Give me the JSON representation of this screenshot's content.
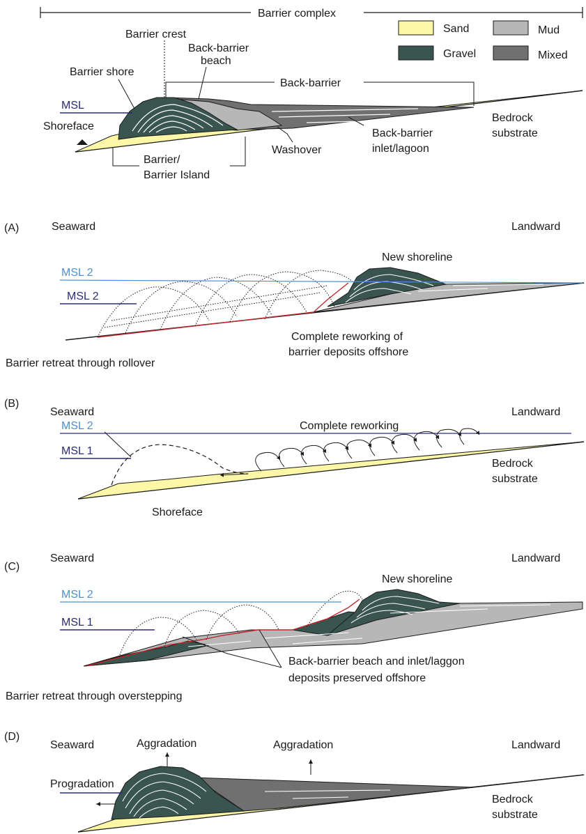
{
  "colors": {
    "sand": "#fbf7a6",
    "gravel": "#3a5550",
    "mud": "#b7b7b7",
    "mixed": "#707070",
    "msl_light": "#4a90d9",
    "msl_dark": "#2a2a7a",
    "reworking_surface": "#c0282d"
  },
  "top": {
    "complex_label": "Barrier complex",
    "legend": {
      "sand": "Sand",
      "mud": "Mud",
      "gravel": "Gravel",
      "mixed": "Mixed"
    },
    "labels": {
      "barrier_crest": "Barrier crest",
      "back_barrier_beach_1": "Back-barrier",
      "back_barrier_beach_2": "beach",
      "barrier_shore": "Barrier shore",
      "back_barrier": "Back-barrier",
      "msl": "MSL",
      "shoreface": "Shoreface",
      "bedrock_1": "Bedrock",
      "bedrock_2": "substrate",
      "inlet_1": "Back-barrier",
      "inlet_2": "inlet/lagoon",
      "washover": "Washover",
      "barrier_1": "Barrier/",
      "barrier_2": "Barrier Island"
    }
  },
  "panel_a": {
    "letter": "(A)",
    "seaward": "Seaward",
    "landward": "Landward",
    "new_shoreline": "New shoreline",
    "msl_upper": "MSL 2",
    "msl_lower": "MSL 2",
    "note_1": "Complete reworking of",
    "note_2": "barrier deposits offshore",
    "caption": "Barrier retreat through rollover"
  },
  "panel_b": {
    "letter": "(B)",
    "seaward": "Seaward",
    "landward": "Landward",
    "msl_upper": "MSL 2",
    "msl_lower": "MSL 1",
    "complete_reworking": "Complete reworking",
    "bedrock_1": "Bedrock",
    "bedrock_2": "substrate",
    "shoreface": "Shoreface"
  },
  "panel_c": {
    "letter": "(C)",
    "seaward": "Seaward",
    "landward": "Landward",
    "new_shoreline": "New shoreline",
    "msl_upper": "MSL 2",
    "msl_lower": "MSL 1",
    "note_1": "Back-barrier beach and inlet/laggon",
    "note_2": "deposits preserved offshore",
    "caption": "Barrier retreat through overstepping"
  },
  "panel_d": {
    "letter": "(D)",
    "seaward": "Seaward",
    "landward": "Landward",
    "aggradation_1": "Aggradation",
    "aggradation_2": "Aggradation",
    "progradation": "Progradation",
    "bedrock_1": "Bedrock",
    "bedrock_2": "substrate"
  }
}
